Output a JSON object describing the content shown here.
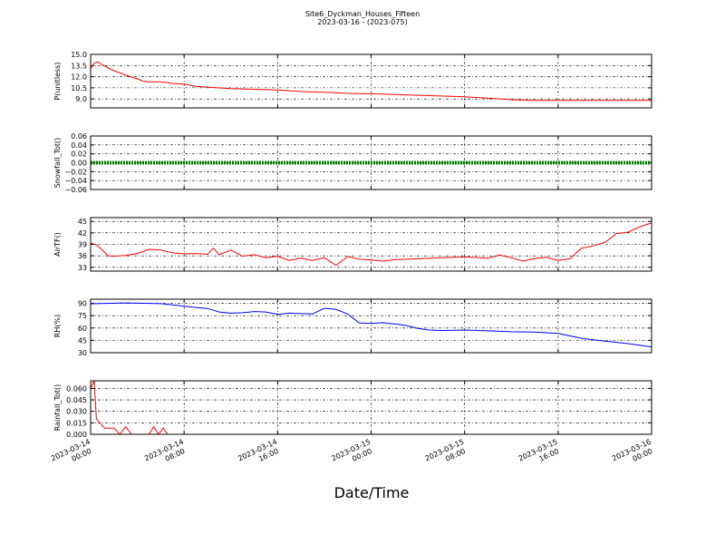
{
  "chart_data": {
    "type": "line",
    "title": "Site6_Dyckman_Houses_Fifteen",
    "subtitle": "2023-03-16 - (2023-075)",
    "xlabel": "Date/Time",
    "x_ticks": [
      "2023-03-14\n00:00",
      "2023-03-14\n08:00",
      "2023-03-14\n16:00",
      "2023-03-15\n00:00",
      "2023-03-15\n08:00",
      "2023-03-15\n16:00",
      "2023-03-16\n00:00"
    ],
    "x_range_hours": [
      0,
      48
    ],
    "grid": true,
    "panels": [
      {
        "ylabel": "P(unitless)",
        "ylim": [
          7.8,
          15.0
        ],
        "yticks": [
          "15.0",
          "13.5",
          "12.0",
          "10.5",
          "9.0"
        ],
        "ytick_values": [
          15.0,
          13.5,
          12.0,
          10.5,
          9.0
        ],
        "color": "#ff0000",
        "points": [
          [
            0,
            13.1
          ],
          [
            0.3,
            13.8
          ],
          [
            0.6,
            14.0
          ],
          [
            1,
            13.6
          ],
          [
            1.5,
            13.2
          ],
          [
            2,
            12.8
          ],
          [
            3,
            12.2
          ],
          [
            4,
            11.7
          ],
          [
            4.5,
            11.4
          ],
          [
            5,
            11.3
          ],
          [
            6,
            11.3
          ],
          [
            7,
            11.1
          ],
          [
            8,
            11.0
          ],
          [
            9,
            10.7
          ],
          [
            10,
            10.6
          ],
          [
            12,
            10.4
          ],
          [
            14,
            10.3
          ],
          [
            16,
            10.2
          ],
          [
            18,
            10.0
          ],
          [
            20,
            9.9
          ],
          [
            22,
            9.75
          ],
          [
            24,
            9.7
          ],
          [
            26,
            9.6
          ],
          [
            28,
            9.5
          ],
          [
            30,
            9.4
          ],
          [
            32,
            9.3
          ],
          [
            34,
            9.1
          ],
          [
            36,
            8.9
          ],
          [
            38,
            8.8
          ],
          [
            40,
            8.8
          ],
          [
            44,
            8.8
          ],
          [
            48,
            8.8
          ]
        ]
      },
      {
        "ylabel": "Snowfall_Tot()",
        "ylim": [
          -0.06,
          0.06
        ],
        "yticks": [
          "0.06",
          "0.04",
          "0.02",
          "0.00",
          "−0.02",
          "−0.04",
          "−0.06"
        ],
        "ytick_values": [
          0.06,
          0.04,
          0.02,
          0.0,
          -0.02,
          -0.04,
          -0.06
        ],
        "color": "#008000",
        "constant": 0.0
      },
      {
        "ylabel": "AirTF()",
        "ylim": [
          32,
          46
        ],
        "yticks": [
          "45",
          "42",
          "39",
          "36",
          "33"
        ],
        "ytick_values": [
          45,
          42,
          39,
          36,
          33
        ],
        "color": "#ff0000",
        "points": [
          [
            0,
            39.3
          ],
          [
            0.5,
            38.9
          ],
          [
            1,
            37.5
          ],
          [
            1.5,
            36.0
          ],
          [
            2,
            35.9
          ],
          [
            3,
            36.1
          ],
          [
            4,
            36.6
          ],
          [
            5,
            37.7
          ],
          [
            6,
            37.5
          ],
          [
            7,
            36.8
          ],
          [
            8,
            36.5
          ],
          [
            9,
            36.6
          ],
          [
            10,
            36.4
          ],
          [
            10.5,
            38.0
          ],
          [
            11,
            36.3
          ],
          [
            12,
            37.5
          ],
          [
            13,
            35.9
          ],
          [
            14,
            36.3
          ],
          [
            15,
            35.5
          ],
          [
            16,
            35.9
          ],
          [
            17,
            34.8
          ],
          [
            18,
            35.4
          ],
          [
            19,
            34.8
          ],
          [
            20,
            35.5
          ],
          [
            21,
            33.5
          ],
          [
            22,
            35.8
          ],
          [
            23,
            35.1
          ],
          [
            24,
            34.9
          ],
          [
            25,
            34.6
          ],
          [
            26,
            35.0
          ],
          [
            28,
            35.2
          ],
          [
            30,
            35.5
          ],
          [
            32,
            35.7
          ],
          [
            34,
            35.4
          ],
          [
            35,
            36.2
          ],
          [
            36,
            35.5
          ],
          [
            37,
            34.6
          ],
          [
            38,
            35.3
          ],
          [
            39,
            35.6
          ],
          [
            40,
            34.8
          ],
          [
            41,
            35.2
          ],
          [
            42,
            38.0
          ],
          [
            43,
            38.6
          ],
          [
            44,
            39.5
          ],
          [
            45,
            41.8
          ],
          [
            46,
            42.2
          ],
          [
            47,
            43.6
          ],
          [
            48,
            44.6
          ]
        ]
      },
      {
        "ylabel": "RH(%)",
        "ylim": [
          30,
          95
        ],
        "yticks": [
          "90",
          "75",
          "60",
          "45",
          "30"
        ],
        "ytick_values": [
          90,
          75,
          60,
          45,
          30
        ],
        "color": "#0000ff",
        "points": [
          [
            0,
            89.5
          ],
          [
            3,
            90.5
          ],
          [
            6,
            89.6
          ],
          [
            9,
            85.0
          ],
          [
            10,
            83.8
          ],
          [
            11,
            79.5
          ],
          [
            12,
            78.0
          ],
          [
            13,
            78.6
          ],
          [
            14,
            80.0
          ],
          [
            15,
            79.5
          ],
          [
            16,
            76.5
          ],
          [
            17,
            78.0
          ],
          [
            18,
            77.5
          ],
          [
            19,
            77.0
          ],
          [
            20,
            84.0
          ],
          [
            21,
            82.5
          ],
          [
            22,
            77.0
          ],
          [
            23,
            66.0
          ],
          [
            24,
            65.5
          ],
          [
            25,
            66.5
          ],
          [
            26,
            65.0
          ],
          [
            27,
            63.0
          ],
          [
            28,
            59.5
          ],
          [
            29,
            57.5
          ],
          [
            30,
            57.0
          ],
          [
            32,
            57.5
          ],
          [
            34,
            56.5
          ],
          [
            36,
            55.5
          ],
          [
            38,
            55.0
          ],
          [
            40,
            53.5
          ],
          [
            42,
            47.5
          ],
          [
            44,
            44.0
          ],
          [
            46,
            41.0
          ],
          [
            48,
            37.0
          ]
        ]
      },
      {
        "ylabel": "Rainfall_Tot()",
        "ylim": [
          0.0,
          0.07
        ],
        "yticks": [
          "0.060",
          "0.045",
          "0.030",
          "0.015",
          "0.000"
        ],
        "ytick_values": [
          0.06,
          0.045,
          0.03,
          0.015,
          0.0
        ],
        "color": "#ff0000",
        "points": [
          [
            0,
            0.06
          ],
          [
            0.3,
            0.07
          ],
          [
            0.5,
            0.02
          ],
          [
            0.8,
            0.015
          ],
          [
            1.2,
            0.008
          ],
          [
            2,
            0.008
          ],
          [
            2.5,
            0.0
          ],
          [
            3,
            0.01
          ],
          [
            3.5,
            0.0
          ],
          [
            5,
            0.0
          ],
          [
            5.4,
            0.01
          ],
          [
            5.8,
            0.0
          ],
          [
            6.2,
            0.008
          ],
          [
            6.6,
            0.0
          ],
          [
            48,
            0.0
          ]
        ]
      }
    ]
  }
}
